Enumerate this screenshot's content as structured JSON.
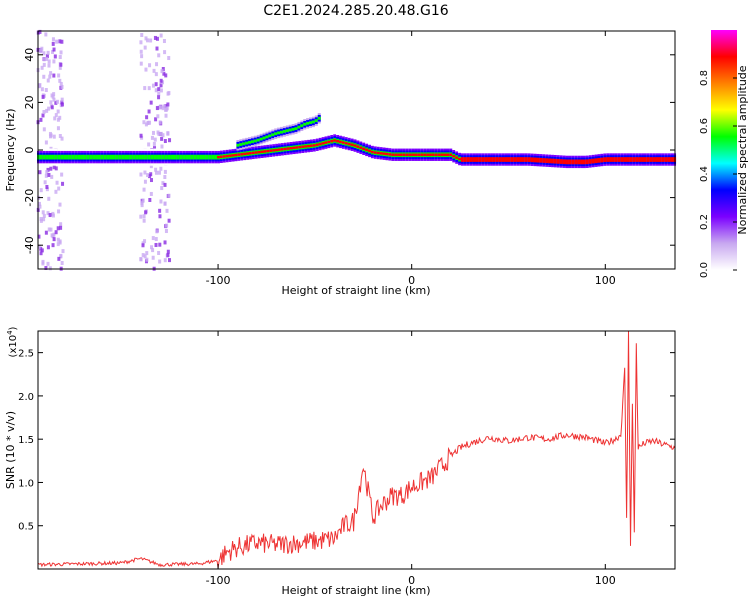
{
  "title": "C2E1.2024.285.20.48.G16",
  "chart_data": [
    {
      "type": "heatmap",
      "xlabel": "Height of straight line (km)",
      "ylabel": "Frequency (Hz)",
      "xlim": [
        -193,
        136
      ],
      "ylim": [
        -50,
        50
      ],
      "xticks": [
        -100,
        0,
        100
      ],
      "yticks": [
        -40,
        -20,
        0,
        20,
        40
      ],
      "colorbar": {
        "label": "Normalized spectral amplitude",
        "range": [
          0,
          1
        ],
        "ticks": [
          0.0,
          0.2,
          0.4,
          0.6,
          0.8
        ],
        "tick_labels": [
          "0.0",
          "0.2",
          "0.4",
          "0.6",
          "0.8"
        ],
        "colormap": [
          "#ffffff",
          "#c8a8f0",
          "#7b00ff",
          "#0000ff",
          "#00ffff",
          "#00ff00",
          "#ffff00",
          "#ff8000",
          "#ff0000",
          "#ff00ff"
        ]
      },
      "main_trace": {
        "x": [
          -193,
          -170,
          -150,
          -130,
          -110,
          -100,
          -90,
          -80,
          -70,
          -60,
          -50,
          -45,
          -40,
          -30,
          -20,
          -10,
          0,
          10,
          20,
          25,
          40,
          60,
          80,
          90,
          100,
          110,
          120,
          136
        ],
        "y": [
          -3,
          -3,
          -3,
          -3,
          -3,
          -3,
          -2,
          -1,
          0,
          1,
          2,
          3,
          4,
          2,
          -1,
          -2,
          -2,
          -2,
          -2,
          -4,
          -4,
          -4,
          -5,
          -5,
          -4,
          -4,
          -4,
          -4
        ]
      },
      "upper_branch": {
        "x": [
          -90,
          -80,
          -70,
          -60,
          -55,
          -50,
          -47
        ],
        "y": [
          2,
          4,
          7,
          9,
          11,
          12,
          14
        ]
      }
    },
    {
      "type": "line",
      "xlabel": "Height of straight line (km)",
      "ylabel": "SNR (10 * v/v)",
      "y_multiplier": "(x10",
      "y_multiplier_exponent": "4",
      "y_multiplier_close": ")",
      "xlim": [
        -193,
        136
      ],
      "ylim": [
        0,
        2.75
      ],
      "xticks": [
        -100,
        0,
        100
      ],
      "yticks": [
        0.5,
        1.0,
        1.5,
        2.0,
        2.5
      ],
      "ytick_labels": [
        "0.5",
        "1.0",
        "1.5",
        "2.0",
        "2.5"
      ],
      "series": [
        {
          "color": "#ee3333",
          "x": [
            -193,
            -170,
            -150,
            -140,
            -130,
            -110,
            -100,
            -95,
            -90,
            -80,
            -70,
            -60,
            -50,
            -40,
            -35,
            -30,
            -25,
            -20,
            -15,
            -10,
            -5,
            0,
            10,
            20,
            25,
            30,
            40,
            50,
            60,
            70,
            80,
            90,
            100,
            105,
            108,
            110,
            111,
            112,
            113,
            114,
            115,
            116,
            117,
            120,
            125,
            130,
            136
          ],
          "y": [
            0.05,
            0.06,
            0.07,
            0.12,
            0.05,
            0.06,
            0.1,
            0.2,
            0.25,
            0.3,
            0.28,
            0.3,
            0.32,
            0.35,
            0.5,
            0.55,
            1.2,
            0.6,
            0.75,
            0.85,
            0.85,
            0.95,
            1.05,
            1.3,
            1.4,
            1.45,
            1.52,
            1.48,
            1.52,
            1.5,
            1.55,
            1.52,
            1.45,
            1.5,
            1.55,
            2.3,
            0.6,
            2.75,
            0.3,
            1.9,
            0.4,
            2.6,
            1.4,
            1.45,
            1.48,
            1.44,
            1.4
          ]
        }
      ]
    }
  ]
}
